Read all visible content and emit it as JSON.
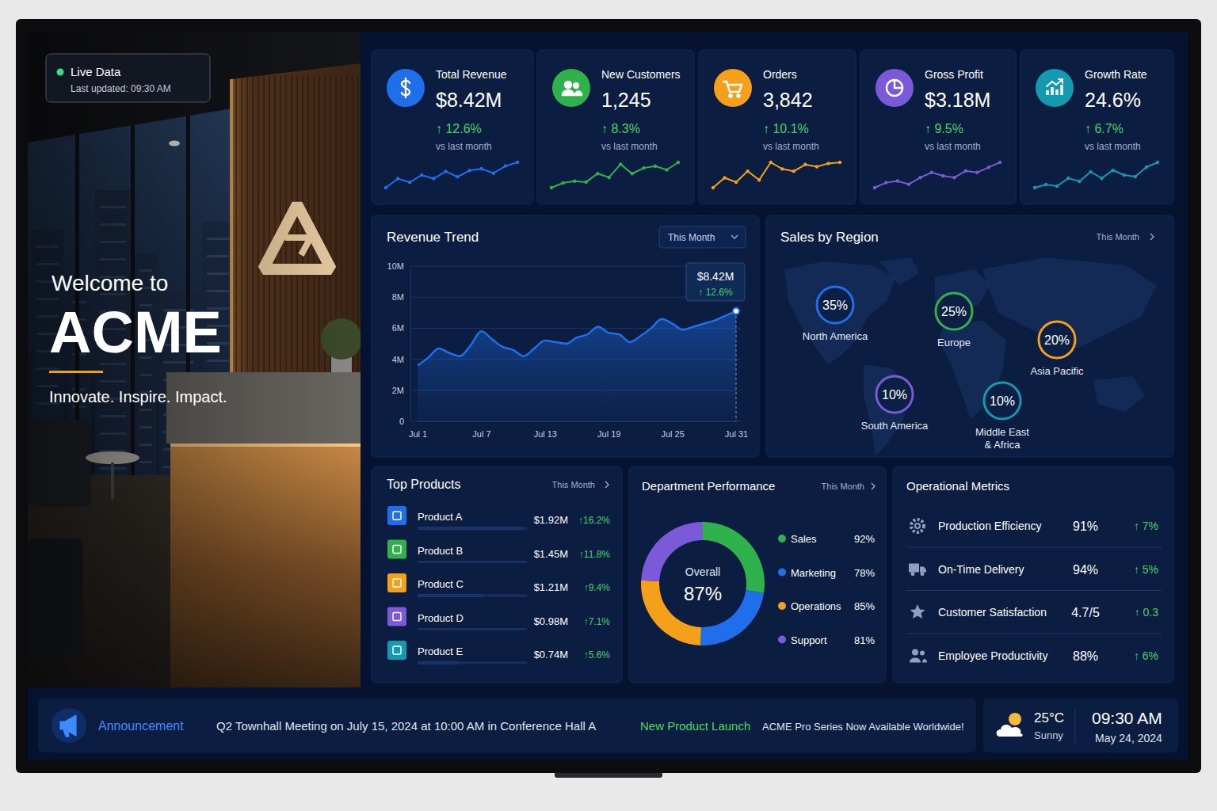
{
  "screen": {
    "status": "Live Data",
    "updated": "Last updated: 09:30 AM",
    "welcome": "Welcome to",
    "brand": "ACME",
    "tagline": "Innovate. Inspire. Impact."
  },
  "kpis": [
    {
      "title": "Total Revenue",
      "value": "$8.42M",
      "change": "↑ 12.6%",
      "note": "vs last month",
      "color": "#1f6feb",
      "sparkline": [
        2.0,
        3.0,
        2.6,
        3.4,
        3.0,
        3.8,
        3.2,
        3.9,
        4.1,
        3.6,
        4.4,
        4.8
      ]
    },
    {
      "title": "New Customers",
      "value": "1,245",
      "change": "↑ 8.3%",
      "note": "vs last month",
      "color": "#2fb24c",
      "sparkline": [
        1.5,
        2.0,
        2.2,
        2.1,
        3.0,
        2.6,
        4.0,
        3.0,
        3.6,
        3.8,
        3.4,
        4.2
      ]
    },
    {
      "title": "Orders",
      "value": "3,842",
      "change": "↑ 10.1%",
      "note": "vs last month",
      "color": "#f5a01a",
      "sparkline": [
        1.5,
        2.4,
        2.0,
        3.0,
        2.2,
        3.8,
        3.2,
        3.0,
        3.6,
        3.4,
        3.7,
        3.8
      ]
    },
    {
      "title": "Gross Profit",
      "value": "$3.18M",
      "change": "↑ 9.5%",
      "note": "vs last month",
      "color": "#7a5ad8",
      "sparkline": [
        1.2,
        1.8,
        2.0,
        1.6,
        2.4,
        3.0,
        2.6,
        2.4,
        3.2,
        3.0,
        3.6,
        4.2
      ]
    },
    {
      "title": "Growth Rate",
      "value": "24.6%",
      "change": "↑ 6.7%",
      "note": "vs last month",
      "color": "#149ab0",
      "sparkline": [
        1.2,
        1.6,
        1.4,
        2.4,
        2.0,
        3.2,
        2.4,
        3.4,
        2.8,
        2.6,
        3.8,
        4.4
      ]
    }
  ],
  "chart_data": [
    {
      "type": "line",
      "title": "Revenue Trend",
      "filter": "This Month",
      "categories": [
        "Jul 1",
        null,
        null,
        null,
        null,
        null,
        "Jul 7",
        null,
        null,
        null,
        null,
        null,
        "Jul 13",
        null,
        null,
        null,
        null,
        null,
        "Jul 19",
        null,
        null,
        null,
        null,
        null,
        "Jul 25",
        null,
        null,
        null,
        null,
        null,
        "Jul 31"
      ],
      "values": [
        3.6,
        4.1,
        4.7,
        4.4,
        4.2,
        4.9,
        5.8,
        5.3,
        4.8,
        4.6,
        4.2,
        4.7,
        5.2,
        5.1,
        5.0,
        5.4,
        5.6,
        6.1,
        5.7,
        5.6,
        5.1,
        5.5,
        6.0,
        6.6,
        6.3,
        5.9,
        6.1,
        6.3,
        6.5,
        6.8,
        7.1
      ],
      "color": "#1f6feb",
      "ylim": [
        0,
        10
      ],
      "yticks": [
        0,
        {
          "value": 2,
          "label": "2M"
        },
        {
          "value": 4,
          "label": "4M"
        },
        {
          "value": 6,
          "label": "6M"
        },
        {
          "value": 8,
          "label": "8M"
        },
        {
          "value": 10,
          "label": "10M"
        }
      ],
      "grid": true,
      "annotations": [
        "$8.42M",
        "↑ 12.6%"
      ]
    },
    {
      "type": "map",
      "title": "Sales by Region",
      "filter": "This Month",
      "categories": [
        "North America",
        "Europe",
        "Asia Pacific",
        "South America",
        "Middle East & Africa"
      ],
      "values": [
        35,
        25,
        20,
        10,
        10
      ],
      "value_labels": [
        "35%",
        "25%",
        "20%",
        "10%",
        "10%"
      ],
      "colors": [
        "#1f6feb",
        "#2fb24c",
        "#f5a01a",
        "#7a5ad8",
        "#149ab0"
      ],
      "data_labels": true
    },
    {
      "type": "bar",
      "orientation": "horizontal",
      "title": "Top Products",
      "filter": "This Month",
      "categories": [
        "Product A",
        "Product B",
        "Product C",
        "Product D",
        "Product E"
      ],
      "values": [
        1.92,
        1.45,
        1.21,
        0.98,
        0.74
      ],
      "value_labels": [
        "$1.92M",
        "$1.45M",
        "$1.21M",
        "$0.98M",
        "$0.74M"
      ],
      "changes": [
        "↑16.2%",
        "↑11.8%",
        "↑9.4%",
        "↑7.1%",
        "↑5.6%"
      ],
      "color": "#1f6feb",
      "xlim": [
        0,
        2
      ],
      "data_labels": true,
      "tick_labels": false
    },
    {
      "type": "donut",
      "title": "Department Performance",
      "filter": "This Month",
      "categories": [
        "Sales",
        "Marketing",
        "Operations",
        "Support"
      ],
      "values": [
        92,
        78,
        85,
        81
      ],
      "value_labels": [
        "92%",
        "78%",
        "85%",
        "81%"
      ],
      "colors": [
        "#2fb24c",
        "#1f6feb",
        "#f5a01a",
        "#7a5ad8"
      ],
      "legend": "right",
      "annotations": [
        "Overall",
        "87%"
      ]
    }
  ],
  "operations": {
    "title": "Operational Metrics",
    "rows": [
      {
        "label": "Production Efficiency",
        "value": "91%",
        "change": "↑ 7%"
      },
      {
        "label": "On-Time Delivery",
        "value": "94%",
        "change": "↑ 5%"
      },
      {
        "label": "Customer Satisfaction",
        "value": "4.7/5",
        "change": "↑ 0.3"
      },
      {
        "label": "Employee Productivity",
        "value": "88%",
        "change": "↑ 6%"
      }
    ]
  },
  "footer": {
    "announcement_title": "Announcement",
    "announcement": "Q2 Townhall Meeting on July 15, 2024 at 10:00 AM in Conference Hall A",
    "launch_title": "New Product Launch",
    "launch": "ACME Pro Series Now Available Worldwide!",
    "temperature": "25°C",
    "weather": "Sunny",
    "time": "09:30 AM",
    "date": "May 24, 2024"
  }
}
